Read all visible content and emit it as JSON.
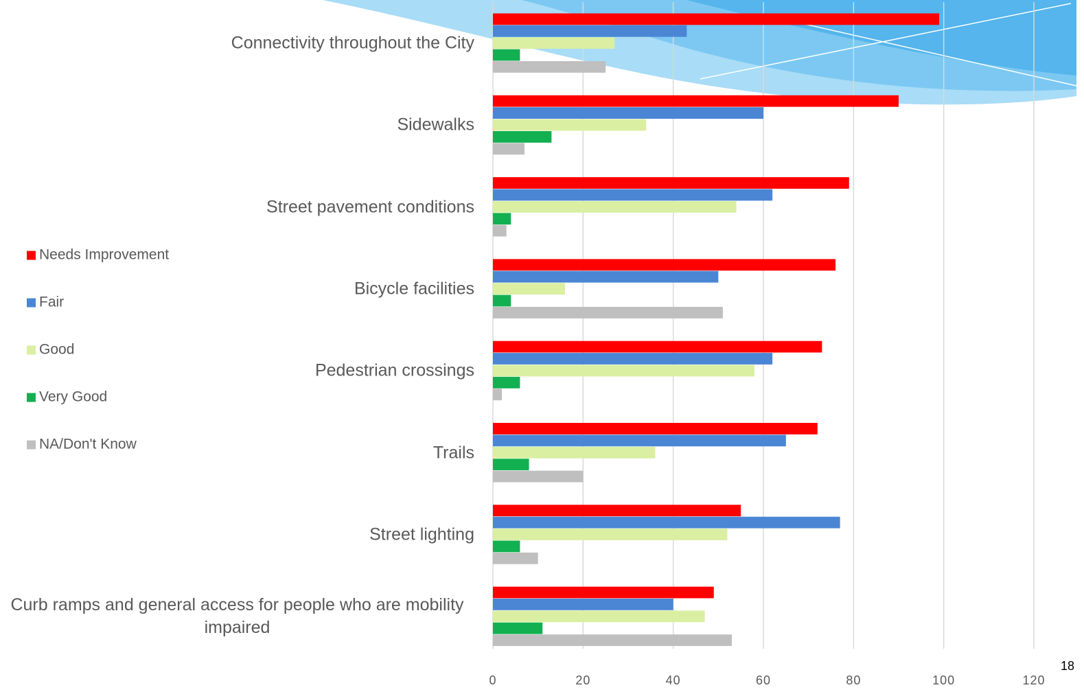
{
  "chart_data": {
    "type": "hbar",
    "categories": [
      "Connectivity throughout the City",
      "Sidewalks",
      "Street pavement conditions",
      "Bicycle facilities",
      "Pedestrian crossings",
      "Trails",
      "Street lighting",
      "Curb ramps and general access for people who are mobility impaired"
    ],
    "series": [
      {
        "name": "Needs Improvement",
        "color": "#ff0000",
        "values": [
          99,
          90,
          79,
          76,
          73,
          72,
          55,
          49
        ]
      },
      {
        "name": "Fair",
        "color": "#4a86d4",
        "values": [
          43,
          60,
          62,
          50,
          62,
          65,
          77,
          40
        ]
      },
      {
        "name": "Good",
        "color": "#daefa2",
        "values": [
          27,
          34,
          54,
          16,
          58,
          36,
          52,
          47
        ]
      },
      {
        "name": "Very Good",
        "color": "#12b050",
        "values": [
          6,
          13,
          4,
          4,
          6,
          8,
          6,
          11
        ]
      },
      {
        "name": "NA/Don't Know",
        "color": "#bfbfbf",
        "values": [
          25,
          7,
          3,
          51,
          2,
          20,
          10,
          53
        ]
      }
    ],
    "xlim": [
      0,
      120
    ],
    "xticks": [
      0,
      20,
      40,
      60,
      80,
      100,
      120
    ],
    "grid": true,
    "legend": "left"
  },
  "page_number": "18"
}
